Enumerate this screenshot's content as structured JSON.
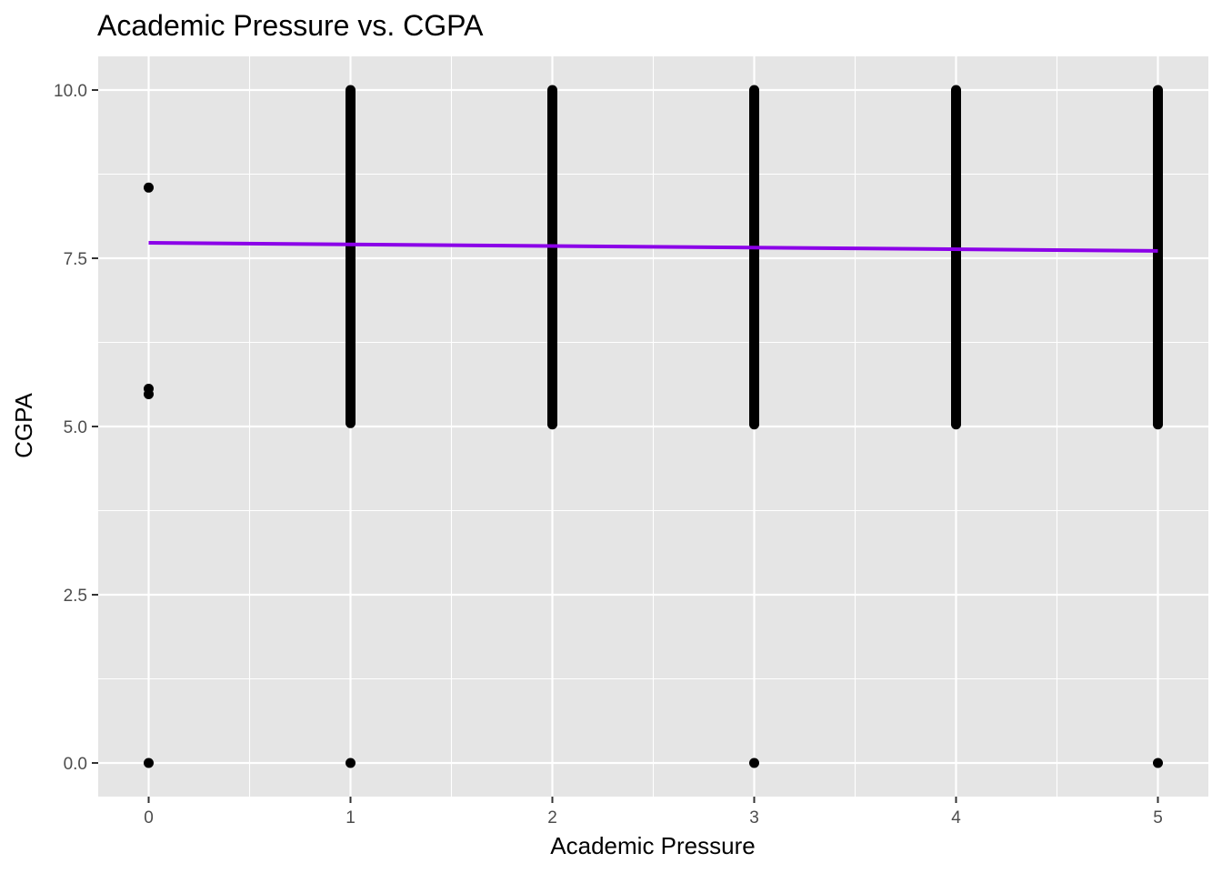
{
  "chart_data": {
    "type": "scatter",
    "title": "Academic Pressure vs. CGPA",
    "xlabel": "Academic Pressure",
    "ylabel": "CGPA",
    "xlim": [
      -0.25,
      5.25
    ],
    "ylim": [
      -0.5,
      10.5
    ],
    "x_ticks": [
      0,
      1,
      2,
      3,
      4,
      5
    ],
    "x_tick_labels": [
      "0",
      "1",
      "2",
      "3",
      "4",
      "5"
    ],
    "y_ticks": [
      0,
      2.5,
      5,
      7.5,
      10
    ],
    "y_tick_labels": [
      "0.0",
      "2.5",
      "5.0",
      "7.5",
      "10.0"
    ],
    "grid": true,
    "legend": "none",
    "colors": {
      "panel": "#e5e5e5",
      "grid": "#ffffff",
      "point": "#000000",
      "line": "#8b00e8"
    },
    "dense_columns": [
      {
        "x": 1,
        "y_min": 5.05,
        "y_max": 10.0
      },
      {
        "x": 2,
        "y_min": 5.03,
        "y_max": 10.0
      },
      {
        "x": 3,
        "y_min": 5.03,
        "y_max": 10.0
      },
      {
        "x": 4,
        "y_min": 5.03,
        "y_max": 10.0
      },
      {
        "x": 5,
        "y_min": 5.03,
        "y_max": 10.0
      }
    ],
    "points": [
      {
        "x": 0,
        "y": 8.55
      },
      {
        "x": 0,
        "y": 5.56
      },
      {
        "x": 0,
        "y": 5.48
      },
      {
        "x": 0,
        "y": 0
      },
      {
        "x": 1,
        "y": 0
      },
      {
        "x": 3,
        "y": 0
      },
      {
        "x": 5,
        "y": 0
      }
    ],
    "trend_line": {
      "x": [
        0,
        5
      ],
      "y": [
        7.73,
        7.61
      ]
    }
  }
}
